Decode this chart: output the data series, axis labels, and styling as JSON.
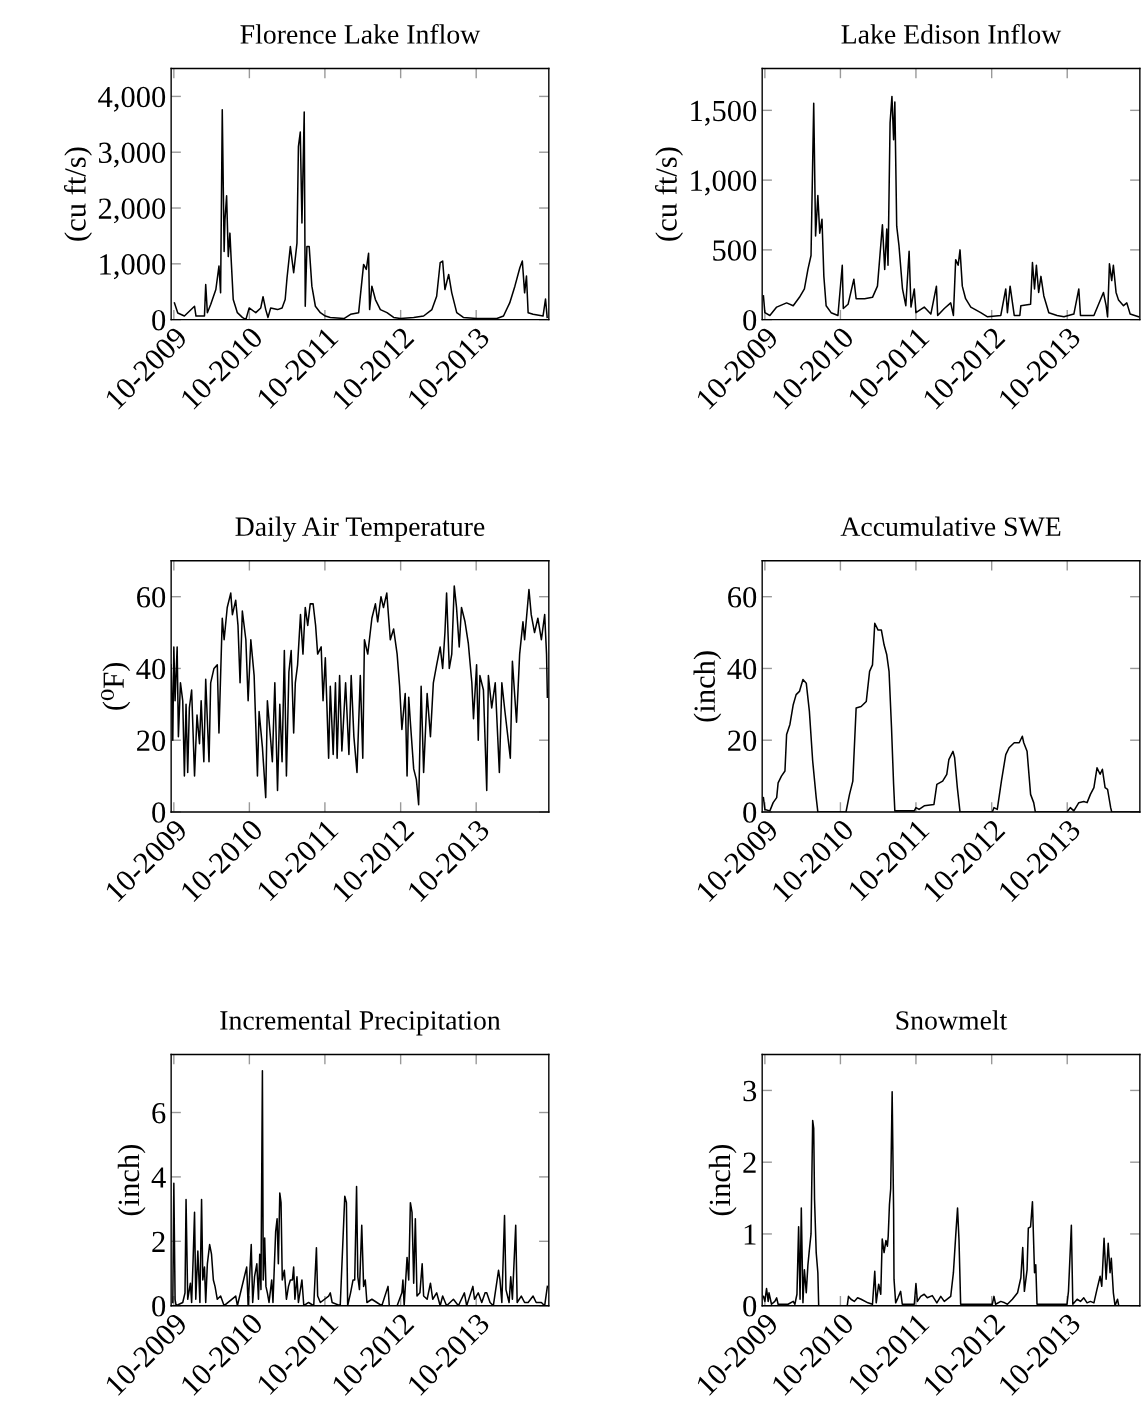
{
  "chart_data": [
    {
      "type": "line",
      "title": "Florence Lake Inflow",
      "ylabel": "(cu ft/s)",
      "color": "#000000",
      "xlim": [
        "2009-09-18",
        "2014-09-17"
      ],
      "ylim": [
        0,
        4500
      ],
      "xticks": [
        {
          "value": "2009-10-01",
          "label": "10-2009"
        },
        {
          "value": "2010-10-01",
          "label": "10-2010"
        },
        {
          "value": "2011-10-01",
          "label": "10-2011"
        },
        {
          "value": "2012-10-01",
          "label": "10-2012"
        },
        {
          "value": "2013-10-01",
          "label": "10-2013"
        }
      ],
      "yticks": [
        0,
        {
          "value": 1000,
          "label": "1,000"
        },
        {
          "value": 2000,
          "label": "2,000"
        },
        {
          "value": 3000,
          "label": "3,000"
        },
        {
          "value": 4000,
          "label": "4,000"
        }
      ],
      "x": [
        "2009-10-04",
        "2009-10-20",
        "2009-11-21",
        "2010-01-09",
        "2010-01-16",
        "2010-02-26",
        "2010-03-04",
        "2010-03-12",
        "2010-03-28",
        "2010-04-22",
        "2010-05-07",
        "2010-05-15",
        "2010-05-23",
        "2010-06-01",
        "2010-06-05",
        "2010-06-13",
        "2010-06-21",
        "2010-06-29",
        "2010-07-05",
        "2010-07-15",
        "2010-08-04",
        "2010-08-28",
        "2010-09-14",
        "2010-09-30",
        "2010-11-01",
        "2010-11-25",
        "2010-12-06",
        "2010-12-19",
        "2010-12-30",
        "2011-01-12",
        "2011-02-14",
        "2011-03-08",
        "2011-03-23",
        "2011-04-01",
        "2011-04-17",
        "2011-05-03",
        "2011-05-19",
        "2011-05-26",
        "2011-06-04",
        "2011-06-12",
        "2011-06-23",
        "2011-06-28",
        "2011-07-06",
        "2011-07-17",
        "2011-07-30",
        "2011-08-16",
        "2011-09-09",
        "2011-10-03",
        "2011-10-27",
        "2012-01-01",
        "2012-02-02",
        "2012-03-12",
        "2012-04-05",
        "2012-04-18",
        "2012-04-29",
        "2012-05-04",
        "2012-05-15",
        "2012-06-01",
        "2012-06-25",
        "2012-07-27",
        "2012-08-28",
        "2012-09-30",
        "2012-12-03",
        "2013-01-20",
        "2013-03-01",
        "2013-03-24",
        "2013-04-10",
        "2013-04-22",
        "2013-05-03",
        "2013-05-21",
        "2013-06-05",
        "2013-06-29",
        "2013-07-31",
        "2013-10-03",
        "2014-01-09",
        "2014-02-10",
        "2014-03-12",
        "2014-04-06",
        "2014-04-30",
        "2014-05-12",
        "2014-05-23",
        "2014-06-01",
        "2014-06-09",
        "2014-07-03",
        "2014-08-20",
        "2014-09-01",
        "2014-09-09"
      ],
      "values": [
        300,
        120,
        65,
        240,
        65,
        65,
        630,
        125,
        270,
        540,
        960,
        480,
        3760,
        1220,
        1790,
        2220,
        1130,
        1550,
        1080,
        360,
        125,
        40,
        0,
        210,
        125,
        210,
        410,
        180,
        40,
        210,
        180,
        210,
        360,
        750,
        1310,
        840,
        1370,
        3100,
        3360,
        1730,
        3720,
        240,
        1310,
        1310,
        600,
        240,
        125,
        65,
        40,
        20,
        95,
        125,
        990,
        900,
        1190,
        180,
        600,
        360,
        180,
        125,
        40,
        20,
        40,
        65,
        180,
        420,
        1020,
        1050,
        540,
        810,
        480,
        125,
        40,
        20,
        20,
        65,
        300,
        600,
        930,
        1050,
        480,
        780,
        125,
        95,
        65,
        370,
        40
      ]
    },
    {
      "type": "line",
      "title": "Lake Edison Inflow",
      "ylabel": "(cu ft/s)",
      "color": "#000000",
      "xlim": [
        "2009-09-18",
        "2014-09-17"
      ],
      "ylim": [
        0,
        1800
      ],
      "xticks": [
        {
          "value": "2009-10-01",
          "label": "10-2009"
        },
        {
          "value": "2010-10-01",
          "label": "10-2010"
        },
        {
          "value": "2011-10-01",
          "label": "10-2011"
        },
        {
          "value": "2012-10-01",
          "label": "10-2012"
        },
        {
          "value": "2013-10-01",
          "label": "10-2013"
        }
      ],
      "yticks": [
        0,
        500,
        {
          "value": 1000,
          "label": "1,000"
        },
        {
          "value": 1500,
          "label": "1,500"
        }
      ],
      "x": [
        "2009-09-24",
        "2009-10-01",
        "2009-10-25",
        "2009-11-27",
        "2010-01-14",
        "2010-02-15",
        "2010-03-17",
        "2010-04-10",
        "2010-04-27",
        "2010-05-12",
        "2010-05-25",
        "2010-06-03",
        "2010-06-14",
        "2010-06-23",
        "2010-07-04",
        "2010-07-13",
        "2010-07-24",
        "2010-08-17",
        "2010-09-19",
        "2010-10-10",
        "2010-10-15",
        "2010-11-07",
        "2010-12-05",
        "2010-12-16",
        "2011-01-26",
        "2011-03-05",
        "2011-03-29",
        "2011-04-22",
        "2011-05-03",
        "2011-05-13",
        "2011-05-19",
        "2011-05-29",
        "2011-06-07",
        "2011-06-15",
        "2011-06-21",
        "2011-06-30",
        "2011-07-11",
        "2011-07-28",
        "2011-08-13",
        "2011-08-29",
        "2011-09-07",
        "2011-09-23",
        "2011-10-01",
        "2011-11-10",
        "2011-12-12",
        "2012-01-08",
        "2012-01-14",
        "2012-02-15",
        "2012-03-17",
        "2012-03-30",
        "2012-04-10",
        "2012-04-22",
        "2012-05-01",
        "2012-05-12",
        "2012-05-28",
        "2012-06-22",
        "2012-08-09",
        "2012-09-11",
        "2012-11-14",
        "2012-12-08",
        "2012-12-16",
        "2012-12-29",
        "2013-01-18",
        "2013-02-14",
        "2013-02-19",
        "2013-04-07",
        "2013-04-16",
        "2013-04-26",
        "2013-05-05",
        "2013-05-16",
        "2013-05-27",
        "2013-06-10",
        "2013-07-04",
        "2013-08-13",
        "2013-09-15",
        "2013-11-02",
        "2013-11-26",
        "2013-12-04",
        "2014-02-07",
        "2014-03-25",
        "2014-04-07",
        "2014-04-14",
        "2014-04-23",
        "2014-05-04",
        "2014-05-12",
        "2014-05-25",
        "2014-06-06",
        "2014-06-30",
        "2014-07-16",
        "2014-08-01",
        "2014-09-11"
      ],
      "values": [
        170,
        50,
        30,
        90,
        120,
        100,
        160,
        220,
        360,
        460,
        1550,
        600,
        890,
        620,
        720,
        310,
        100,
        50,
        30,
        390,
        80,
        110,
        290,
        150,
        150,
        160,
        240,
        680,
        360,
        650,
        390,
        1410,
        1600,
        1290,
        1560,
        670,
        530,
        220,
        100,
        490,
        90,
        220,
        50,
        90,
        40,
        240,
        30,
        80,
        120,
        30,
        430,
        390,
        500,
        240,
        150,
        90,
        50,
        20,
        30,
        220,
        50,
        240,
        30,
        30,
        100,
        110,
        410,
        220,
        390,
        195,
        310,
        170,
        50,
        30,
        20,
        40,
        220,
        30,
        30,
        195,
        100,
        20,
        400,
        280,
        390,
        195,
        140,
        100,
        120,
        40,
        20
      ]
    },
    {
      "type": "line",
      "title": "Daily Air Temperature",
      "ylabel": "(⁰F)",
      "color": "#000000",
      "xlim": [
        "2009-09-18",
        "2014-09-17"
      ],
      "ylim": [
        0,
        70
      ],
      "xticks": [
        {
          "value": "2009-10-01",
          "label": "10-2009"
        },
        {
          "value": "2010-10-01",
          "label": "10-2010"
        },
        {
          "value": "2011-10-01",
          "label": "10-2011"
        },
        {
          "value": "2012-10-01",
          "label": "10-2012"
        },
        {
          "value": "2013-10-01",
          "label": "10-2013"
        }
      ],
      "yticks": [
        0,
        20,
        40,
        60
      ],
      "x": [
        "2009-09-18",
        "2009-09-26",
        "2009-10-01",
        "2009-10-07",
        "2009-10-17",
        "2009-10-23",
        "2009-11-02",
        "2009-11-13",
        "2009-11-21",
        "2009-11-29",
        "2009-12-07",
        "2009-12-15",
        "2009-12-26",
        "2010-01-09",
        "2010-01-21",
        "2010-02-02",
        "2010-02-10",
        "2010-02-23",
        "2010-03-04",
        "2010-03-20",
        "2010-03-28",
        "2010-04-13",
        "2010-04-29",
        "2010-05-07",
        "2010-05-23",
        "2010-06-01",
        "2010-06-16",
        "2010-07-03",
        "2010-07-11",
        "2010-07-27",
        "2010-08-07",
        "2010-08-17",
        "2010-08-28",
        "2010-09-14",
        "2010-09-25",
        "2010-10-08",
        "2010-10-24",
        "2010-11-09",
        "2010-11-17",
        "2010-12-03",
        "2010-12-19",
        "2010-12-27",
        "2011-01-12",
        "2011-01-20",
        "2011-02-01",
        "2011-02-14",
        "2011-02-25",
        "2011-03-08",
        "2011-03-19",
        "2011-03-29",
        "2011-04-10",
        "2011-04-21",
        "2011-05-03",
        "2011-05-11",
        "2011-05-22",
        "2011-06-05",
        "2011-06-17",
        "2011-06-28",
        "2011-07-10",
        "2011-07-22",
        "2011-08-05",
        "2011-08-17",
        "2011-08-27",
        "2011-09-13",
        "2011-09-22",
        "2011-10-03",
        "2011-10-19",
        "2011-10-27",
        "2011-11-10",
        "2011-11-21",
        "2011-11-29",
        "2011-12-11",
        "2011-12-22",
        "2012-01-09",
        "2012-01-25",
        "2012-02-05",
        "2012-02-18",
        "2012-03-04",
        "2012-03-20",
        "2012-04-01",
        "2012-04-09",
        "2012-04-25",
        "2012-05-15",
        "2012-06-01",
        "2012-06-12",
        "2012-06-28",
        "2012-07-10",
        "2012-07-26",
        "2012-08-12",
        "2012-08-28",
        "2012-09-14",
        "2012-09-26",
        "2012-10-07",
        "2012-10-23",
        "2012-11-01",
        "2012-11-09",
        "2012-11-17",
        "2012-12-03",
        "2012-12-16",
        "2012-12-27",
        "2013-01-08",
        "2013-01-20",
        "2013-02-06",
        "2013-02-22",
        "2013-03-08",
        "2013-03-24",
        "2013-04-10",
        "2013-04-22",
        "2013-05-03",
        "2013-05-11",
        "2013-05-24",
        "2013-06-05",
        "2013-06-17",
        "2013-06-28",
        "2013-07-11",
        "2013-07-22",
        "2013-08-08",
        "2013-08-24",
        "2013-09-10",
        "2013-09-18",
        "2013-10-03",
        "2013-10-11",
        "2013-10-19",
        "2013-11-05",
        "2013-11-21",
        "2013-11-29",
        "2013-12-15",
        "2014-01-01",
        "2014-01-21",
        "2014-02-02",
        "2014-02-17",
        "2014-03-15",
        "2014-03-25",
        "2014-04-14",
        "2014-04-29",
        "2014-05-15",
        "2014-05-23",
        "2014-06-13",
        "2014-06-24",
        "2014-07-10",
        "2014-07-26",
        "2014-08-12",
        "2014-08-28",
        "2014-09-06",
        "2014-09-10"
      ],
      "values": [
        41,
        20,
        46,
        31,
        46,
        21,
        36,
        31,
        10,
        30,
        11,
        29,
        34,
        10,
        27,
        19,
        31,
        14,
        37,
        14,
        36,
        40,
        41,
        22,
        54,
        48,
        57,
        61,
        55,
        59,
        52,
        36,
        56,
        48,
        31,
        48,
        38,
        10,
        28,
        18,
        4,
        31,
        20,
        14,
        36,
        6,
        30,
        14,
        45,
        10,
        39,
        45,
        22,
        36,
        41,
        55,
        44,
        57,
        52,
        58,
        58,
        52,
        44,
        46,
        31,
        43,
        15,
        35,
        16,
        36,
        15,
        38,
        17,
        36,
        16,
        38,
        21,
        11,
        38,
        15,
        48,
        44,
        54,
        58,
        53,
        60,
        57,
        61,
        48,
        51,
        44,
        35,
        23,
        33,
        10,
        32,
        25,
        12,
        9,
        2,
        35,
        11,
        33,
        21,
        36,
        41,
        46,
        40,
        50,
        61,
        40,
        44,
        63,
        57,
        46,
        57,
        53,
        47,
        36,
        26,
        41,
        20,
        38,
        34,
        6,
        38,
        29,
        36,
        11,
        36,
        28,
        15,
        42,
        25,
        44,
        53,
        48,
        62,
        55,
        50,
        54,
        48,
        55,
        44,
        32
      ]
    },
    {
      "type": "line",
      "title": "Accumulative SWE",
      "ylabel": "(inch)",
      "color": "#000000",
      "xlim": [
        "2009-09-18",
        "2014-09-17"
      ],
      "ylim": [
        0,
        70
      ],
      "xticks": [
        {
          "value": "2009-10-01",
          "label": "10-2009"
        },
        {
          "value": "2010-10-01",
          "label": "10-2010"
        },
        {
          "value": "2011-10-01",
          "label": "10-2011"
        },
        {
          "value": "2012-10-01",
          "label": "10-2012"
        },
        {
          "value": "2013-10-01",
          "label": "10-2013"
        }
      ],
      "yticks": [
        0,
        20,
        40,
        60
      ],
      "x": [
        "2009-09-24",
        "2009-10-01",
        "2009-10-25",
        "2009-11-10",
        "2009-11-27",
        "2009-12-04",
        "2009-12-20",
        "2010-01-06",
        "2010-01-14",
        "2010-01-30",
        "2010-02-15",
        "2010-03-01",
        "2010-03-17",
        "2010-04-03",
        "2010-04-19",
        "2010-05-04",
        "2010-05-20",
        "2010-06-06",
        "2010-06-14",
        "2010-10-28",
        "2010-11-14",
        "2010-11-30",
        "2010-12-16",
        "2011-01-09",
        "2011-02-03",
        "2011-02-19",
        "2011-03-05",
        "2011-03-16",
        "2011-04-01",
        "2011-04-17",
        "2011-04-30",
        "2011-05-13",
        "2011-05-24",
        "2011-06-05",
        "2011-06-15",
        "2011-06-21",
        "2011-07-19",
        "2011-09-23",
        "2011-10-01",
        "2011-10-16",
        "2011-11-10",
        "2011-12-27",
        "2012-01-10",
        "2012-02-07",
        "2012-02-27",
        "2012-03-08",
        "2012-03-28",
        "2012-04-05",
        "2012-04-18",
        "2012-05-01",
        "2012-10-04",
        "2012-10-12",
        "2012-10-28",
        "2012-11-17",
        "2012-12-08",
        "2012-12-24",
        "2013-01-18",
        "2013-02-11",
        "2013-02-26",
        "2013-03-05",
        "2013-03-21",
        "2013-04-07",
        "2013-04-22",
        "2013-04-30",
        "2013-09-30",
        "2013-10-16",
        "2013-11-02",
        "2013-11-26",
        "2013-12-20",
        "2014-01-05",
        "2014-01-21",
        "2014-02-07",
        "2014-02-22",
        "2014-03-09",
        "2014-03-20",
        "2014-04-02",
        "2014-04-14",
        "2014-04-29",
        "2014-05-04",
        "2014-09-11"
      ],
      "values": [
        4,
        0.7,
        0.3,
        2.6,
        4,
        8.1,
        10,
        11.4,
        21.6,
        24.4,
        29.9,
        32.7,
        33.6,
        36.9,
        35.9,
        28.1,
        14.2,
        4,
        0,
        0,
        4.9,
        8.6,
        29,
        29.4,
        30.8,
        39.2,
        41,
        52.6,
        50.7,
        50.7,
        46.6,
        43.8,
        39.2,
        23.4,
        7.7,
        0.3,
        0.3,
        0.3,
        1.2,
        0.7,
        1.7,
        2.1,
        7.7,
        8.6,
        10.5,
        14.6,
        16.9,
        15.1,
        6.8,
        0,
        0,
        1.2,
        0.7,
        8.6,
        16,
        17.9,
        19.3,
        19.3,
        21.1,
        19.3,
        16.9,
        4.9,
        2.6,
        0,
        0,
        1.2,
        0.3,
        2.6,
        2.9,
        2.6,
        4.9,
        6.8,
        12.3,
        10.5,
        11.9,
        6.8,
        6.3,
        1.2,
        0,
        0
      ]
    },
    {
      "type": "line",
      "title": "Incremental Precipitation",
      "ylabel": "(inch)",
      "color": "#000000",
      "xlim": [
        "2009-09-18",
        "2014-09-17"
      ],
      "ylim": [
        0,
        7.8
      ],
      "xticks": [
        {
          "value": "2009-10-01",
          "label": "10-2009"
        },
        {
          "value": "2010-10-01",
          "label": "10-2010"
        },
        {
          "value": "2011-10-01",
          "label": "10-2011"
        },
        {
          "value": "2012-10-01",
          "label": "10-2012"
        },
        {
          "value": "2013-10-01",
          "label": "10-2013"
        }
      ],
      "yticks": [
        0,
        2,
        4,
        6
      ],
      "x": [
        "2009-09-26",
        "2009-10-01",
        "2009-10-07",
        "2009-10-12",
        "2009-11-13",
        "2009-11-24",
        "2009-11-29",
        "2009-12-07",
        "2009-12-20",
        "2009-12-26",
        "2010-01-02",
        "2010-01-09",
        "2010-01-15",
        "2010-01-25",
        "2010-02-04",
        "2010-02-12",
        "2010-02-18",
        "2010-02-26",
        "2010-03-04",
        "2010-03-12",
        "2010-03-23",
        "2010-04-01",
        "2010-04-10",
        "2010-04-18",
        "2010-04-29",
        "2010-05-15",
        "2010-06-01",
        "2010-07-27",
        "2010-08-04",
        "2010-09-18",
        "2010-09-25",
        "2010-10-10",
        "2010-10-17",
        "2010-10-26",
        "2010-11-06",
        "2010-11-14",
        "2010-11-20",
        "2010-11-26",
        "2010-12-03",
        "2010-12-07",
        "2010-12-14",
        "2010-12-20",
        "2010-12-27",
        "2011-01-04",
        "2011-01-17",
        "2011-01-23",
        "2011-02-05",
        "2011-02-12",
        "2011-02-18",
        "2011-02-25",
        "2011-03-03",
        "2011-03-09",
        "2011-03-19",
        "2011-03-29",
        "2011-04-08",
        "2011-04-17",
        "2011-04-27",
        "2011-05-03",
        "2011-05-09",
        "2011-05-19",
        "2011-05-26",
        "2011-06-12",
        "2011-06-21",
        "2011-07-14",
        "2011-08-08",
        "2011-08-21",
        "2011-08-27",
        "2011-09-09",
        "2011-10-19",
        "2011-10-27",
        "2011-11-05",
        "2011-12-14",
        "2012-01-05",
        "2012-01-13",
        "2012-01-19",
        "2012-02-02",
        "2012-02-14",
        "2012-02-22",
        "2012-03-02",
        "2012-03-08",
        "2012-03-16",
        "2012-03-27",
        "2012-04-05",
        "2012-04-13",
        "2012-04-21",
        "2012-05-15",
        "2012-06-08",
        "2012-07-02",
        "2012-08-01",
        "2012-08-07",
        "2012-09-14",
        "2012-10-07",
        "2012-10-12",
        "2012-10-18",
        "2012-11-01",
        "2012-11-09",
        "2012-11-17",
        "2012-11-25",
        "2012-12-03",
        "2012-12-11",
        "2012-12-19",
        "2013-01-02",
        "2013-01-13",
        "2013-01-20",
        "2013-02-06",
        "2013-02-22",
        "2013-03-05",
        "2013-03-24",
        "2013-04-10",
        "2013-04-22",
        "2013-05-11",
        "2013-06-13",
        "2013-07-07",
        "2013-08-05",
        "2013-08-16",
        "2013-09-15",
        "2013-09-23",
        "2013-10-11",
        "2013-10-28",
        "2013-11-13",
        "2013-11-21",
        "2013-12-07",
        "2013-12-23",
        "2014-01-17",
        "2014-01-24",
        "2014-02-02",
        "2014-02-15",
        "2014-02-22",
        "2014-03-09",
        "2014-03-17",
        "2014-03-25",
        "2014-04-10",
        "2014-04-17",
        "2014-05-07",
        "2014-05-23",
        "2014-06-09",
        "2014-07-03",
        "2014-07-18",
        "2014-08-12",
        "2014-08-28",
        "2014-09-10"
      ],
      "values": [
        0.1,
        3.8,
        0.2,
        0,
        0.1,
        0.4,
        3.3,
        0.2,
        0.7,
        0.1,
        1.4,
        2.9,
        0.2,
        1.7,
        0.1,
        3.3,
        0.8,
        1.2,
        0.1,
        1.3,
        1.9,
        1.6,
        0.8,
        0.6,
        0.2,
        0.3,
        0,
        0.3,
        0,
        1.2,
        0,
        1.9,
        0.1,
        0.9,
        1.3,
        0.2,
        1.6,
        0.5,
        7.3,
        0.8,
        2.1,
        0.6,
        0.4,
        0.1,
        0.8,
        0.1,
        2.3,
        2.7,
        1.3,
        3.5,
        3.2,
        0.8,
        1.1,
        0.2,
        0.6,
        0.8,
        0.8,
        1.2,
        0.2,
        0.9,
        0.1,
        0.8,
        0,
        0.1,
        0,
        1.8,
        0.3,
        0.1,
        0.3,
        0.4,
        0.1,
        0,
        3.4,
        3.2,
        0,
        0.4,
        0.8,
        0.8,
        3.7,
        0.9,
        0.5,
        2.5,
        0.6,
        0.8,
        0.1,
        0.2,
        0.1,
        0,
        0.6,
        0,
        0,
        0.4,
        0.8,
        0,
        1.5,
        0.8,
        3.2,
        2.9,
        0.7,
        2.7,
        0.3,
        0.4,
        1.3,
        0.3,
        0.2,
        0.7,
        0.2,
        0.4,
        0,
        0.3,
        0,
        0.2,
        0,
        0.4,
        0,
        0.6,
        0.2,
        0.4,
        0.1,
        0.4,
        0.4,
        0.1,
        0,
        1.1,
        0.8,
        0.1,
        2.8,
        0.5,
        0.1,
        0.9,
        0.2,
        2.5,
        0.1,
        0.3,
        0.1,
        0.1,
        0.3,
        0.1,
        0.1,
        0,
        0.6
      ]
    },
    {
      "type": "line",
      "title": "Snowmelt",
      "ylabel": "(inch)",
      "color": "#000000",
      "xlim": [
        "2009-09-18",
        "2014-09-17"
      ],
      "ylim": [
        0,
        3.5
      ],
      "xticks": [
        {
          "value": "2009-10-01",
          "label": "10-2009"
        },
        {
          "value": "2010-10-01",
          "label": "10-2010"
        },
        {
          "value": "2011-10-01",
          "label": "10-2011"
        },
        {
          "value": "2012-10-01",
          "label": "10-2012"
        },
        {
          "value": "2013-10-01",
          "label": "10-2013"
        }
      ],
      "yticks": [
        0,
        1,
        2,
        3
      ],
      "x": [
        "2009-09-24",
        "2009-10-01",
        "2009-10-09",
        "2009-10-17",
        "2009-10-21",
        "2009-11-02",
        "2009-11-18",
        "2009-11-27",
        "2009-12-04",
        "2010-01-21",
        "2010-02-15",
        "2010-02-23",
        "2010-03-05",
        "2010-03-13",
        "2010-03-20",
        "2010-03-26",
        "2010-04-03",
        "2010-04-10",
        "2010-04-19",
        "2010-04-27",
        "2010-05-04",
        "2010-05-12",
        "2010-05-20",
        "2010-05-25",
        "2010-05-29",
        "2010-06-06",
        "2010-06-14",
        "2010-06-18",
        "2010-11-03",
        "2010-11-09",
        "2010-11-21",
        "2010-12-07",
        "2010-12-23",
        "2011-01-09",
        "2011-02-11",
        "2011-03-05",
        "2011-03-16",
        "2011-03-23",
        "2011-04-04",
        "2011-04-14",
        "2011-04-21",
        "2011-04-30",
        "2011-05-09",
        "2011-05-16",
        "2011-05-20",
        "2011-05-26",
        "2011-06-01",
        "2011-06-08",
        "2011-06-15",
        "2011-06-17",
        "2011-06-25",
        "2011-07-06",
        "2011-07-19",
        "2011-07-27",
        "2011-09-23",
        "2011-10-01",
        "2011-10-08",
        "2011-10-24",
        "2011-11-10",
        "2011-11-25",
        "2011-12-19",
        "2012-01-10",
        "2012-01-29",
        "2012-02-15",
        "2012-03-17",
        "2012-03-30",
        "2012-04-10",
        "2012-04-19",
        "2012-04-26",
        "2012-05-04",
        "2012-10-04",
        "2012-10-12",
        "2012-10-20",
        "2012-11-14",
        "2012-12-03",
        "2012-12-16",
        "2013-01-09",
        "2013-02-03",
        "2013-02-19",
        "2013-02-28",
        "2013-03-08",
        "2013-03-21",
        "2013-03-27",
        "2013-04-07",
        "2013-04-16",
        "2013-04-26",
        "2013-05-02",
        "2013-05-08",
        "2013-09-30",
        "2013-10-07",
        "2013-10-21",
        "2013-10-28",
        "2013-11-18",
        "2013-12-04",
        "2013-12-20",
        "2014-01-05",
        "2014-01-21",
        "2014-02-07",
        "2014-02-22",
        "2014-03-09",
        "2014-03-17",
        "2014-03-28",
        "2014-04-07",
        "2014-04-17",
        "2014-04-26",
        "2014-05-02",
        "2014-05-12",
        "2014-05-20",
        "2014-06-01",
        "2014-06-07",
        "2014-09-11"
      ],
      "values": [
        0.13,
        0.06,
        0.24,
        0.06,
        0.18,
        0.02,
        0.06,
        0.11,
        0.02,
        0.02,
        0.06,
        0.02,
        0.16,
        1.1,
        0.09,
        1.36,
        0.04,
        0.5,
        0.18,
        0.57,
        0.78,
        1.0,
        2.58,
        2.47,
        1.48,
        0.74,
        0.46,
        0,
        0,
        0.13,
        0.09,
        0.06,
        0.11,
        0.09,
        0.04,
        0.02,
        0.48,
        0.04,
        0.3,
        0.16,
        0.93,
        0.74,
        0.91,
        0.83,
        0.97,
        1.41,
        1.63,
        2.98,
        1.34,
        0.37,
        0.04,
        0.11,
        0.2,
        0.02,
        0.02,
        0.31,
        0.06,
        0.13,
        0.16,
        0.11,
        0.14,
        0.04,
        0.13,
        0.06,
        0.13,
        0.46,
        0.97,
        1.36,
        0.92,
        0.02,
        0.02,
        0.13,
        0.02,
        0.06,
        0.04,
        0.02,
        0.09,
        0.18,
        0.39,
        0.81,
        0.2,
        0.5,
        1.08,
        1.1,
        1.45,
        0.46,
        0.57,
        0.02,
        0.02,
        0.2,
        1.12,
        0.02,
        0.09,
        0.06,
        0.11,
        0.04,
        0.06,
        0.04,
        0.23,
        0.41,
        0.27,
        0.94,
        0.37,
        0.87,
        0.46,
        0.66,
        0.18,
        0,
        0.09,
        0,
        0
      ]
    }
  ]
}
